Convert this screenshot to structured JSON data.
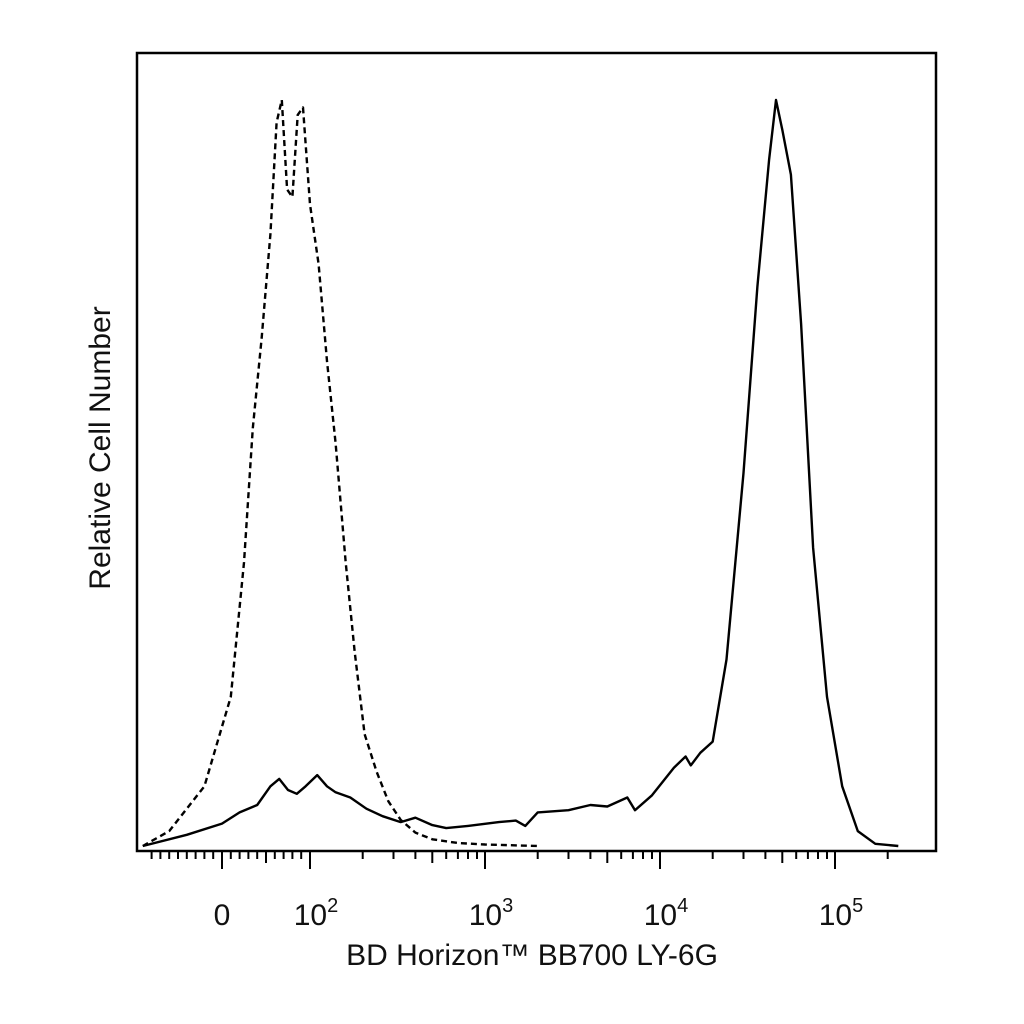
{
  "chart_data": {
    "type": "line",
    "title": "",
    "xlabel": "BD Horizon™ BB700 LY-6G",
    "ylabel": "Relative Cell Number",
    "x_scale": "biexponential (logicle)",
    "xlim": [
      -150,
      250000
    ],
    "ylim": [
      0,
      100
    ],
    "grid": false,
    "legend": "none",
    "x_tick_labels": [
      {
        "value": 0,
        "base": "0",
        "exp": ""
      },
      {
        "value": 100,
        "base": "10",
        "exp": "2"
      },
      {
        "value": 1000,
        "base": "10",
        "exp": "3"
      },
      {
        "value": 10000,
        "base": "10",
        "exp": "4"
      },
      {
        "value": 100000,
        "base": "10",
        "exp": "5"
      }
    ],
    "series": [
      {
        "style": "dashed",
        "color": "#000000",
        "points": [
          [
            -90,
            0
          ],
          [
            -60,
            2
          ],
          [
            -20,
            8
          ],
          [
            10,
            20
          ],
          [
            25,
            38
          ],
          [
            35,
            56
          ],
          [
            45,
            68
          ],
          [
            55,
            82
          ],
          [
            62,
            97
          ],
          [
            68,
            100
          ],
          [
            74,
            88
          ],
          [
            80,
            87
          ],
          [
            86,
            98
          ],
          [
            92,
            99
          ],
          [
            100,
            86
          ],
          [
            112,
            78
          ],
          [
            125,
            65
          ],
          [
            140,
            54
          ],
          [
            160,
            38
          ],
          [
            180,
            26
          ],
          [
            205,
            15
          ],
          [
            240,
            10
          ],
          [
            280,
            6
          ],
          [
            330,
            3.5
          ],
          [
            400,
            1.8
          ],
          [
            500,
            0.9
          ],
          [
            700,
            0.4
          ],
          [
            1000,
            0.2
          ],
          [
            2000,
            0
          ]
        ]
      },
      {
        "style": "solid",
        "color": "#000000",
        "points": [
          [
            -90,
            0
          ],
          [
            -40,
            1.5
          ],
          [
            0,
            3
          ],
          [
            20,
            4.5
          ],
          [
            40,
            5.5
          ],
          [
            55,
            8
          ],
          [
            65,
            9
          ],
          [
            75,
            7.5
          ],
          [
            85,
            7
          ],
          [
            95,
            8
          ],
          [
            110,
            9.5
          ],
          [
            125,
            8
          ],
          [
            140,
            7.2
          ],
          [
            170,
            6.5
          ],
          [
            210,
            5
          ],
          [
            260,
            4
          ],
          [
            330,
            3.2
          ],
          [
            400,
            3.8
          ],
          [
            500,
            2.8
          ],
          [
            600,
            2.4
          ],
          [
            800,
            2.7
          ],
          [
            1200,
            3.2
          ],
          [
            1500,
            3.4
          ],
          [
            1700,
            2.7
          ],
          [
            2000,
            4.5
          ],
          [
            3000,
            4.8
          ],
          [
            4000,
            5.5
          ],
          [
            5000,
            5.3
          ],
          [
            6500,
            6.5
          ],
          [
            7200,
            4.8
          ],
          [
            9000,
            6.8
          ],
          [
            12000,
            10.5
          ],
          [
            14000,
            12
          ],
          [
            15000,
            10.8
          ],
          [
            17000,
            12.5
          ],
          [
            20000,
            14
          ],
          [
            24000,
            25
          ],
          [
            30000,
            50
          ],
          [
            36000,
            75
          ],
          [
            42000,
            92
          ],
          [
            46000,
            100
          ],
          [
            50000,
            96
          ],
          [
            56000,
            90
          ],
          [
            64000,
            70
          ],
          [
            75000,
            40
          ],
          [
            90000,
            20
          ],
          [
            110000,
            8
          ],
          [
            135000,
            2
          ],
          [
            170000,
            0.3
          ],
          [
            230000,
            0
          ]
        ]
      }
    ]
  }
}
